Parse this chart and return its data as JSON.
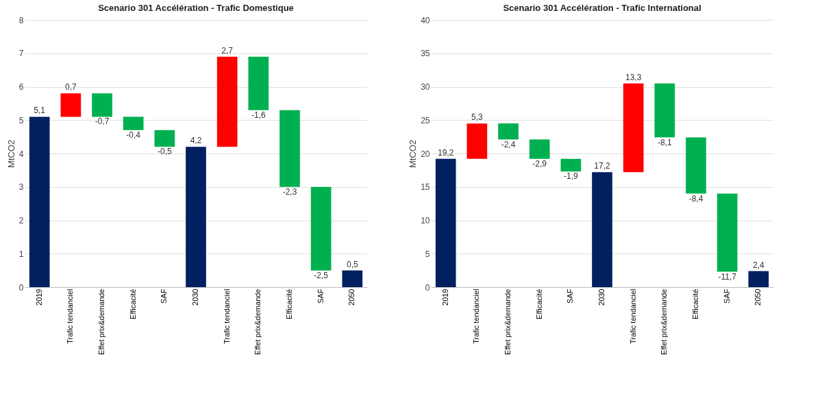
{
  "chart_data": [
    {
      "type": "bar",
      "title": "Scenario 301 Accélération - Trafic Domestique",
      "ylabel": "MtCO2",
      "categories": [
        "2019",
        "Trafic tendanciel",
        "Effet prix&demande",
        "Efficacité",
        "SAF",
        "2030",
        "Trafic tendanciel",
        "Effet prix&demande",
        "Efficacité",
        "SAF",
        "2050"
      ],
      "values": [
        5.1,
        0.7,
        -0.7,
        -0.4,
        -0.5,
        4.2,
        2.7,
        -1.6,
        -2.3,
        -2.5,
        0.5
      ],
      "base": [
        0,
        5.1,
        5.8,
        5.1,
        4.7,
        0,
        4.2,
        6.9,
        5.3,
        3.0,
        0
      ],
      "colors": [
        "#002060",
        "#ff0000",
        "#00b050",
        "#00b050",
        "#00b050",
        "#002060",
        "#ff0000",
        "#00b050",
        "#00b050",
        "#00b050",
        "#002060"
      ],
      "value_labels": [
        "5,1",
        "0,7",
        "-0,7",
        "-0,4",
        "-0,5",
        "4,2",
        "2,7",
        "-1,6",
        "-2,3",
        "-2,5",
        "0,5"
      ],
      "ylim": [
        0,
        8
      ],
      "yticks": [
        0,
        1,
        2,
        3,
        4,
        5,
        6,
        7,
        8
      ],
      "grid": "y"
    },
    {
      "type": "bar",
      "title": "Scenario 301 Accélération - Trafic International",
      "ylabel": "MtCO2",
      "categories": [
        "2019",
        "Trafic tendanciel",
        "Effet prix&demande",
        "Efficacité",
        "SAF",
        "2030",
        "Trafic tendanciel",
        "Effet prix&demande",
        "Efficacité",
        "SAF",
        "2050"
      ],
      "values": [
        19.2,
        5.3,
        -2.4,
        -2.9,
        -1.9,
        17.2,
        13.3,
        -8.1,
        -8.4,
        -11.7,
        2.4
      ],
      "base": [
        0,
        19.2,
        24.5,
        22.1,
        19.2,
        0,
        17.2,
        30.5,
        22.4,
        14.0,
        0
      ],
      "colors": [
        "#002060",
        "#ff0000",
        "#00b050",
        "#00b050",
        "#00b050",
        "#002060",
        "#ff0000",
        "#00b050",
        "#00b050",
        "#00b050",
        "#002060"
      ],
      "value_labels": [
        "19,2",
        "5,3",
        "-2,4",
        "-2,9",
        "-1,9",
        "17,2",
        "13,3",
        "-8,1",
        "-8,4",
        "-11,7",
        "2,4"
      ],
      "ylim": [
        0,
        40
      ],
      "yticks": [
        0,
        5,
        10,
        15,
        20,
        25,
        30,
        35,
        40
      ],
      "grid": "y"
    }
  ]
}
